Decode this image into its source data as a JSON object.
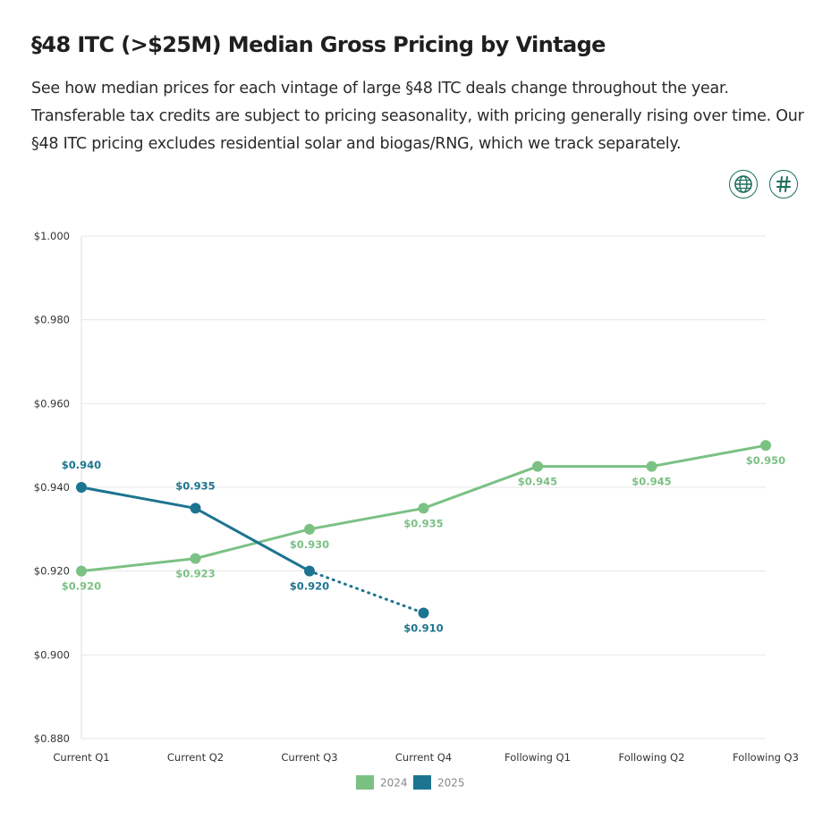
{
  "header": {
    "title": "§48 ITC (>$25M) Median Gross Pricing by Vintage",
    "description": "See how median prices for each vintage of large §48 ITC deals change throughout the year. Transferable tax credits are subject to pricing seasonality, with pricing generally rising over time. Our §48 ITC pricing excludes residential solar and biogas/RNG, which we track separately."
  },
  "toolbar": {
    "globe_icon": "globe-icon",
    "hash_icon": "hash-icon"
  },
  "colors": {
    "series_2024": "#7bc184",
    "series_2025": "#1d7490",
    "grid": "#e6e6e6",
    "accent": "#1e6f5c"
  },
  "chart_data": {
    "type": "line",
    "title": "",
    "xlabel": "",
    "ylabel": "",
    "categories": [
      "Current Q1",
      "Current Q2",
      "Current Q3",
      "Current Q4",
      "Following Q1",
      "Following Q2",
      "Following Q3"
    ],
    "ylim": [
      0.88,
      1.0
    ],
    "yticks": [
      0.88,
      0.9,
      0.92,
      0.94,
      0.96,
      0.98,
      1.0
    ],
    "ytick_labels": [
      "$0.880",
      "$0.900",
      "$0.920",
      "$0.940",
      "$0.960",
      "$0.980",
      "$1.000"
    ],
    "grid": true,
    "legend_position": "bottom-center",
    "series": [
      {
        "name": "2024",
        "color": "#7bc184",
        "values": [
          0.92,
          0.923,
          0.93,
          0.935,
          0.945,
          0.945,
          0.95
        ],
        "labels": [
          "$0.920",
          "$0.923",
          "$0.930",
          "$0.935",
          "$0.945",
          "$0.945",
          "$0.950"
        ],
        "label_side": "below",
        "dashed_from_index": null
      },
      {
        "name": "2025",
        "color": "#1d7490",
        "values": [
          0.94,
          0.935,
          0.92,
          0.91,
          null,
          null,
          null
        ],
        "labels": [
          "$0.940",
          "$0.935",
          "$0.920",
          "$0.910",
          null,
          null,
          null
        ],
        "label_side": [
          "above",
          "above",
          "below",
          "below"
        ],
        "dashed_from_index": 2
      }
    ]
  }
}
